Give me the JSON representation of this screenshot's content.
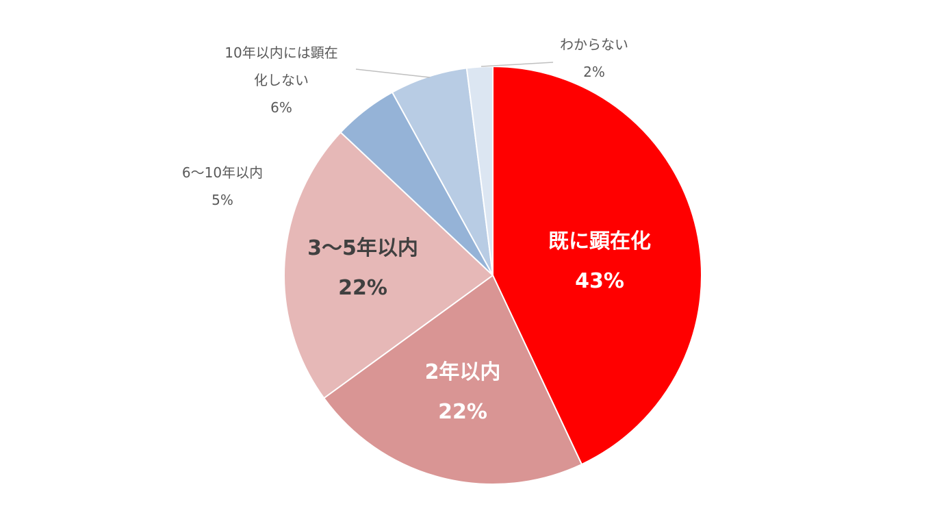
{
  "chart_data": {
    "type": "pie",
    "start_angle": "12 o'clock",
    "direction": "clockwise",
    "slices": [
      {
        "label_lines": [
          "既に顕在化"
        ],
        "value": 43,
        "value_label": "43%",
        "color": "#ff0000",
        "label_color": "#ffffff",
        "emphasis": true
      },
      {
        "label_lines": [
          "2年以内"
        ],
        "value": 22,
        "value_label": "22%",
        "color": "#d99594",
        "label_color": "#ffffff",
        "emphasis": true
      },
      {
        "label_lines": [
          "3～5年以内"
        ],
        "value": 22,
        "value_label": "22%",
        "color": "#e6b8b7",
        "label_color": "#404040",
        "emphasis": true
      },
      {
        "label_lines": [
          "6～10年以内"
        ],
        "value": 5,
        "value_label": "5%",
        "color": "#95b3d7",
        "label_color": "#595959",
        "emphasis": false
      },
      {
        "label_lines": [
          "10年以内には顕在",
          "化しない"
        ],
        "value": 6,
        "value_label": "6%",
        "color": "#b8cce4",
        "label_color": "#595959",
        "emphasis": false
      },
      {
        "label_lines": [
          "わからない"
        ],
        "value": 2,
        "value_label": "2%",
        "color": "#dce6f2",
        "label_color": "#595959",
        "emphasis": false
      }
    ]
  }
}
